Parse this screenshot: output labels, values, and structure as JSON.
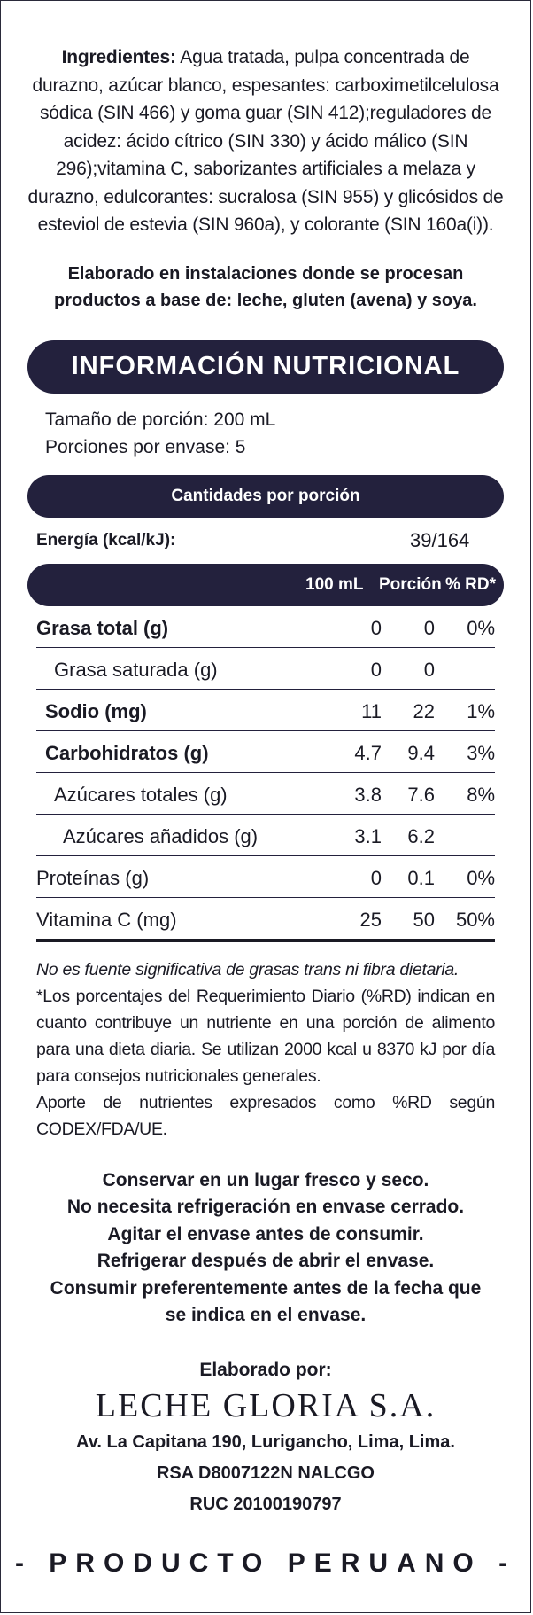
{
  "ingredients": {
    "label": "Ingredientes:",
    "text": " Agua tratada, pulpa concentrada de durazno, azúcar blanco, espesantes: carboximetilcelulosa sódica (SIN 466) y goma guar (SIN 412);reguladores de acidez: ácido cítrico (SIN 330) y ácido málico (SIN 296);vitamina C, saborizantes artificiales a melaza y durazno, edulcorantes: sucralosa (SIN 955) y glicósidos de esteviol de estevia (SIN 960a), y colorante (SIN 160a(i))."
  },
  "allergen_lines": [
    "Elaborado en instalaciones donde se procesan",
    "productos a base de: leche, gluten (avena) y soya."
  ],
  "nutrition": {
    "title": "INFORMACIÓN NUTRICIONAL",
    "serving_size": "Tamaño de porción: 200 mL",
    "servings_per_container": "Porciones por envase: 5",
    "per_serving_header": "Cantidades por porción",
    "energy_label": "Energía (kcal/kJ):",
    "energy_value": "39/164",
    "col_100ml": "100 mL",
    "col_portion": "Porción",
    "col_rd": "% RD*",
    "rows": [
      {
        "name": "Grasa total (g)",
        "v100": "0",
        "portion": "0",
        "rd": "0%"
      },
      {
        "name": "Grasa saturada (g)",
        "v100": "0",
        "portion": "0",
        "rd": ""
      },
      {
        "name": "Sodio (mg)",
        "v100": "11",
        "portion": "22",
        "rd": "1%"
      },
      {
        "name": "Carbohidratos (g)",
        "v100": "4.7",
        "portion": "9.4",
        "rd": "3%"
      },
      {
        "name": "Azúcares totales (g)",
        "v100": "3.8",
        "portion": "7.6",
        "rd": "8%"
      },
      {
        "name": "Azúcares añadidos (g)",
        "v100": "3.1",
        "portion": "6.2",
        "rd": ""
      },
      {
        "name": "Proteínas (g)",
        "v100": "0",
        "portion": "0.1",
        "rd": "0%"
      },
      {
        "name": "Vitamina C (mg)",
        "v100": "25",
        "portion": "50",
        "rd": "50%"
      }
    ]
  },
  "notes": {
    "trans_fat": "No es fuente significativa de grasas trans ni fibra dietaria.",
    "rd_note": "*Los porcentajes del Requerimiento Diario (%RD) indican en cuanto contribuye un nutriente en una porción de alimento para una dieta diaria. Se utilizan 2000 kcal u 8370 kJ por día para consejos nutricionales generales.",
    "codex": "Aporte de nutrientes expresados como %RD según CODEX/FDA/UE."
  },
  "storage_lines": [
    "Conservar en un lugar fresco y seco.",
    "No necesita refrigeración en envase cerrado.",
    "Agitar el envase antes de consumir.",
    "Refrigerar después de abrir el envase.",
    "Consumir preferentemente antes de la fecha que",
    "se indica en el envase."
  ],
  "manufacturer": {
    "made_by": "Elaborado por:",
    "name": "LECHE GLORIA S.A.",
    "address": "Av. La Capitana 190, Lurigancho, Lima, Lima.",
    "rsa": "RSA D8007122N NALCGO",
    "ruc": "RUC 20100190797"
  },
  "origin": "- PRODUCTO PERUANO -"
}
